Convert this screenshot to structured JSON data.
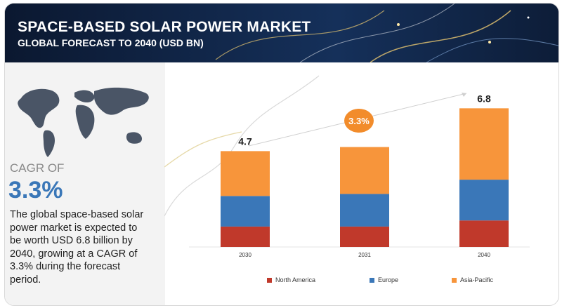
{
  "header": {
    "title": "SPACE-BASED SOLAR POWER MARKET",
    "subtitle": "GLOBAL FORECAST TO 2040 (USD BN)"
  },
  "summary": {
    "cagr_label": "CAGR OF",
    "cagr_value": "3.3%",
    "description": "The global space-based solar power market is expected to be worth USD 6.8 billion by 2040, growing at a CAGR of 3.3% during the forecast period."
  },
  "colors": {
    "north_america": "#c0392b",
    "europe": "#3a77b8",
    "asia_pacific": "#f7953b",
    "badge": "#f28c2b",
    "banner": "#0f1f3a"
  },
  "chart_data": {
    "type": "bar",
    "stacked": true,
    "title": "SPACE-BASED SOLAR POWER MARKET",
    "categories": [
      "2030",
      "2031",
      "2040"
    ],
    "totals": [
      4.7,
      4.9,
      6.8
    ],
    "total_labels": [
      "4.7",
      "",
      "6.8"
    ],
    "cagr_badge": "3.3%",
    "series": [
      {
        "name": "North America",
        "values": [
          1.0,
          1.0,
          1.3
        ]
      },
      {
        "name": "Europe",
        "values": [
          1.5,
          1.6,
          2.0
        ]
      },
      {
        "name": "Asia-Pacific",
        "values": [
          2.2,
          2.3,
          3.5
        ]
      }
    ],
    "ylim": [
      0,
      7.5
    ],
    "legend_position": "bottom",
    "grid": false
  }
}
